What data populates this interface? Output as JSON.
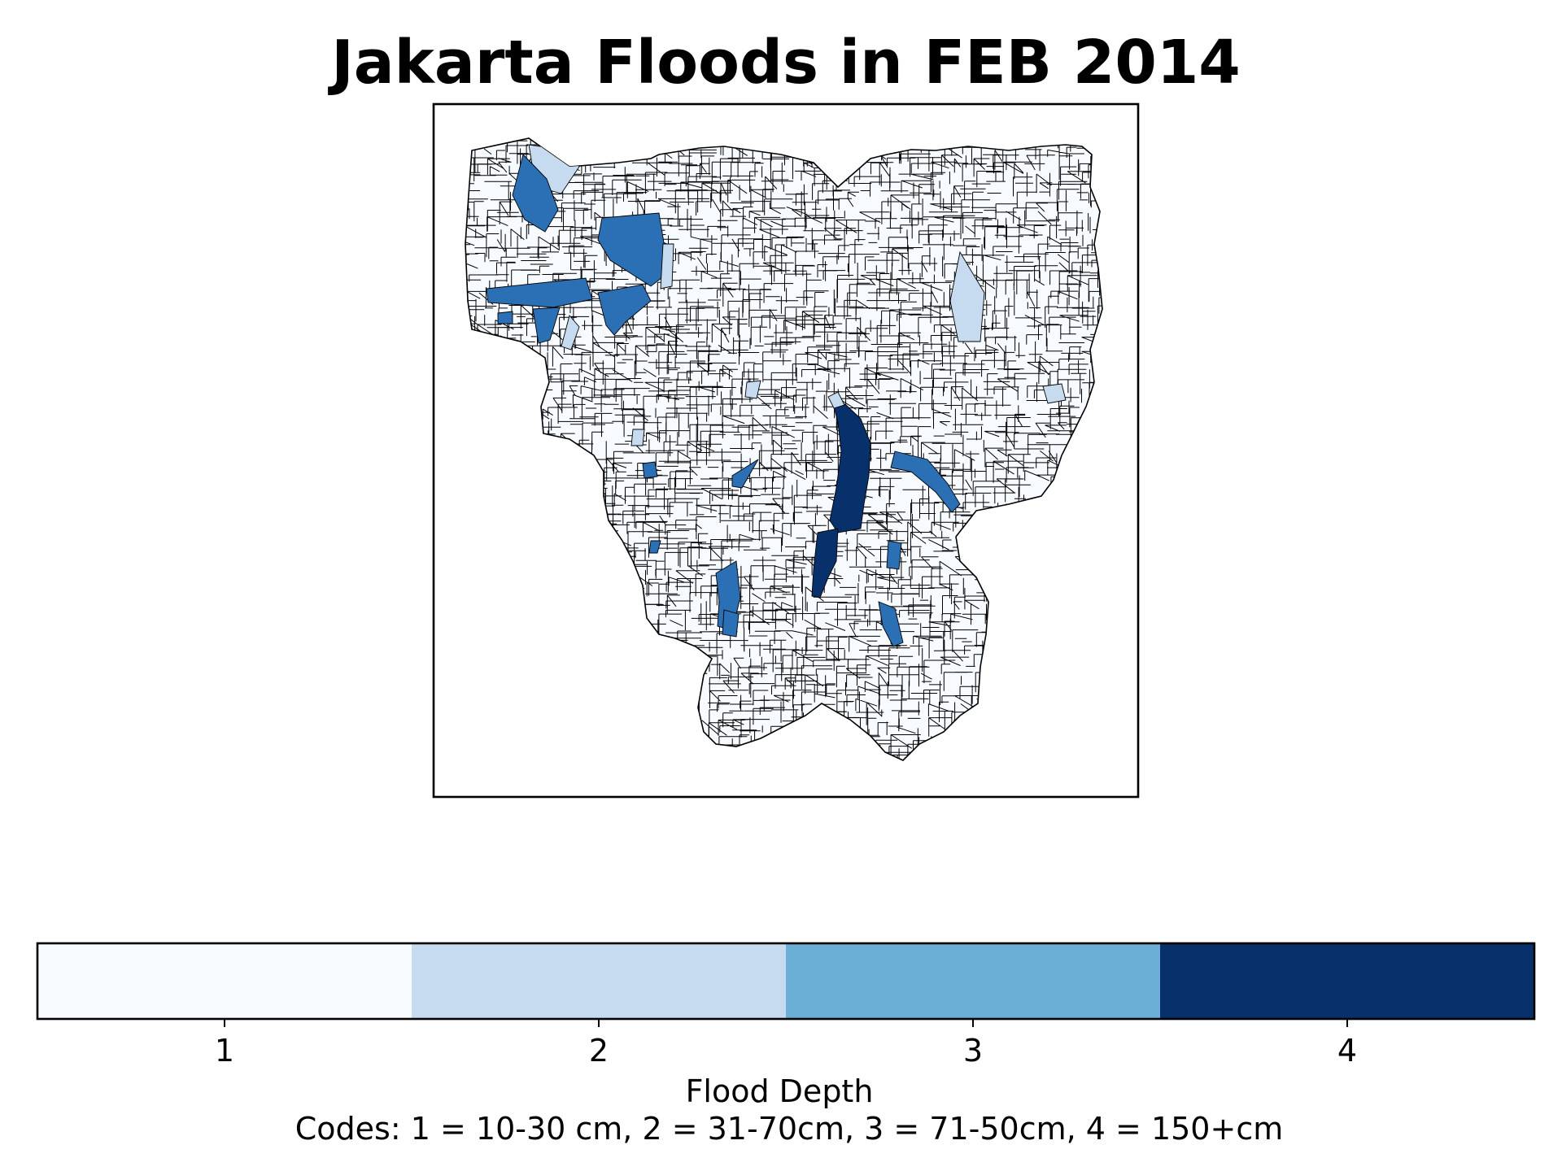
{
  "map": {
    "title": "Jakarta Floods in FEB 2014",
    "region": "Jakarta",
    "legend_position": "bottom",
    "district_outline_color": "#000000",
    "classes": [
      {
        "code": 1,
        "label": "1",
        "color": "#f7fbff"
      },
      {
        "code": 2,
        "label": "2",
        "color": "#c6dbef"
      },
      {
        "code": 3,
        "label": "3",
        "color": "#6baed6"
      },
      {
        "code": 4,
        "label": "4",
        "color": "#08306b"
      }
    ],
    "colorbar": {
      "label": "Flood Depth",
      "caption": "Codes: 1 = 10-30 cm, 2 = 31-70cm, 3 = 71-50cm, 4 = 150+cm"
    },
    "choropleth_rendered_color": "#2b6fb5"
  }
}
